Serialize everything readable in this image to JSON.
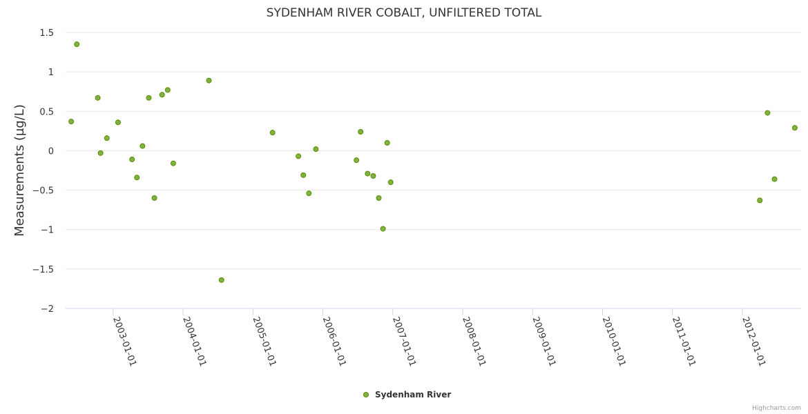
{
  "chart_data": {
    "type": "scatter",
    "title": "SYDENHAM RIVER COBALT, UNFILTERED TOTAL",
    "xlabel": "",
    "ylabel": "Measurements (µg/L)",
    "ylim": [
      -2,
      1.5
    ],
    "yticks": [
      {
        "value": 1.5,
        "label": "1.5"
      },
      {
        "value": 1,
        "label": "1"
      },
      {
        "value": 0.5,
        "label": "0.5"
      },
      {
        "value": 0,
        "label": "0"
      },
      {
        "value": -0.5,
        "label": "−0.5"
      },
      {
        "value": -1,
        "label": "−1"
      },
      {
        "value": -1.5,
        "label": "−1.5"
      },
      {
        "value": -2,
        "label": "−2"
      }
    ],
    "xlim": [
      2002.32,
      2012.84
    ],
    "xticks": [
      {
        "value": 2003,
        "label": "2003-01-01"
      },
      {
        "value": 2004,
        "label": "2004-01-01"
      },
      {
        "value": 2005,
        "label": "2005-01-01"
      },
      {
        "value": 2006,
        "label": "2006-01-01"
      },
      {
        "value": 2007,
        "label": "2007-01-01"
      },
      {
        "value": 2008,
        "label": "2008-01-01"
      },
      {
        "value": 2009,
        "label": "2009-01-01"
      },
      {
        "value": 2010,
        "label": "2010-01-01"
      },
      {
        "value": 2011,
        "label": "2011-01-01"
      },
      {
        "value": 2012,
        "label": "2012-01-01"
      }
    ],
    "legend_position": "bottom-center",
    "series": [
      {
        "name": "Sydenham River",
        "color": "#7cb342",
        "points": [
          {
            "x": 2002.4,
            "y": 0.37
          },
          {
            "x": 2002.48,
            "y": 1.35
          },
          {
            "x": 2002.78,
            "y": 0.67
          },
          {
            "x": 2002.82,
            "y": -0.03
          },
          {
            "x": 2002.91,
            "y": 0.16
          },
          {
            "x": 2003.07,
            "y": 0.36
          },
          {
            "x": 2003.27,
            "y": -0.11
          },
          {
            "x": 2003.34,
            "y": -0.34
          },
          {
            "x": 2003.42,
            "y": 0.06
          },
          {
            "x": 2003.51,
            "y": 0.67
          },
          {
            "x": 2003.59,
            "y": -0.6
          },
          {
            "x": 2003.7,
            "y": 0.71
          },
          {
            "x": 2003.78,
            "y": 0.77
          },
          {
            "x": 2003.86,
            "y": -0.16
          },
          {
            "x": 2004.37,
            "y": 0.89
          },
          {
            "x": 2004.55,
            "y": -1.64
          },
          {
            "x": 2005.28,
            "y": 0.23
          },
          {
            "x": 2005.65,
            "y": -0.07
          },
          {
            "x": 2005.72,
            "y": -0.31
          },
          {
            "x": 2005.8,
            "y": -0.54
          },
          {
            "x": 2005.9,
            "y": 0.02
          },
          {
            "x": 2006.48,
            "y": -0.12
          },
          {
            "x": 2006.54,
            "y": 0.24
          },
          {
            "x": 2006.64,
            "y": -0.29
          },
          {
            "x": 2006.72,
            "y": -0.32
          },
          {
            "x": 2006.8,
            "y": -0.6
          },
          {
            "x": 2006.86,
            "y": -0.99
          },
          {
            "x": 2006.92,
            "y": 0.1
          },
          {
            "x": 2006.97,
            "y": -0.4
          },
          {
            "x": 2012.25,
            "y": -0.63
          },
          {
            "x": 2012.36,
            "y": 0.48
          },
          {
            "x": 2012.46,
            "y": -0.36
          },
          {
            "x": 2012.75,
            "y": 0.29
          }
        ]
      }
    ]
  },
  "credits": "Highcharts.com"
}
